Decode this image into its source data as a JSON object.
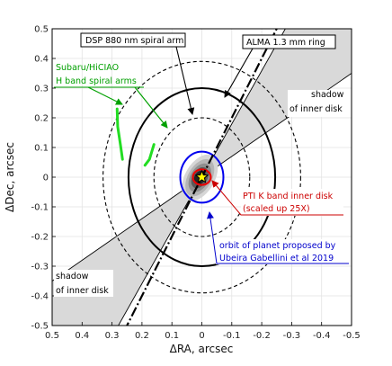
{
  "chart_data": {
    "type": "scatter",
    "xlabel": "ΔRA, arcsec",
    "ylabel": "ΔDec, arcsec",
    "xlim": [
      0.5,
      -0.5
    ],
    "ylim": [
      -0.5,
      0.5
    ],
    "x_ticks": [
      0.5,
      0.4,
      0.3,
      0.2,
      0.1,
      0,
      -0.1,
      -0.2,
      -0.3,
      -0.4,
      -0.5
    ],
    "x_tick_labels": [
      "0.5",
      "0.4",
      "0.3",
      "0.2",
      "0.1",
      "0",
      "-0.1",
      "-0.2",
      "-0.3",
      "-0.4",
      "-0.5"
    ],
    "y_ticks": [
      0.5,
      0.4,
      0.3,
      0.2,
      0.1,
      0,
      -0.1,
      -0.2,
      -0.3,
      -0.4,
      -0.5
    ],
    "y_tick_labels": [
      "0.5",
      "0.4",
      "0.3",
      "0.2",
      "0.1",
      "0",
      "-0.1",
      "-0.2",
      "-0.3",
      "-0.4",
      "-0.5"
    ],
    "grid": true,
    "shadow_wedges": [
      {
        "label": "shadow\nof inner disk",
        "polygon": [
          [
            0,
            0
          ],
          [
            -0.29,
            0.52
          ],
          [
            -0.5,
            0.52
          ],
          [
            -0.5,
            0.35
          ]
        ]
      },
      {
        "label": "shadow\nof inner disk",
        "polygon": [
          [
            0,
            0
          ],
          [
            0.29,
            -0.52
          ],
          [
            0.5,
            -0.52
          ],
          [
            0.5,
            -0.35
          ]
        ]
      }
    ],
    "dash_dot_axis": {
      "from": [
        0.26,
        -0.52
      ],
      "to": [
        -0.26,
        0.52
      ],
      "color": "#000000"
    },
    "ellipses": [
      {
        "name": "ALMA 1.3 mm ring",
        "cx": 0,
        "cy": 0,
        "rx": 0.245,
        "ry": 0.3,
        "style": "solid",
        "color": "#000000"
      },
      {
        "name": "outer dashed ellipse",
        "cx": 0,
        "cy": 0,
        "rx": 0.33,
        "ry": 0.39,
        "style": "dashed",
        "color": "#000000"
      },
      {
        "name": "inner dashed ellipse",
        "cx": 0,
        "cy": 0,
        "rx": 0.16,
        "ry": 0.2,
        "style": "dashed",
        "color": "#000000"
      },
      {
        "name": "orbit of planet proposed by Ubeira Gabellini et al 2019",
        "cx": 0,
        "cy": 0,
        "rx": 0.072,
        "ry": 0.086,
        "style": "solid",
        "color": "#0000ee"
      },
      {
        "name": "PTI K band inner disk",
        "cx": 0,
        "cy": 0,
        "rx": 0.03,
        "ry": 0.026,
        "style": "solid",
        "color": "#ee0000"
      }
    ],
    "spiral_arms_green": [
      [
        [
          0.283,
          0.23
        ],
        [
          0.281,
          0.17
        ],
        [
          0.272,
          0.11
        ],
        [
          0.265,
          0.06
        ]
      ],
      [
        [
          0.16,
          0.11
        ],
        [
          0.175,
          0.06
        ],
        [
          0.19,
          0.04
        ]
      ]
    ],
    "star": {
      "x": 0,
      "y": 0,
      "color": "#ffff00"
    },
    "annotations": [
      {
        "text": "DSP 880 nm spiral arm",
        "color": "#000000",
        "box": true,
        "arrow_to": [
          0.035,
          0.08
        ]
      },
      {
        "text": "ALMA 1.3 mm ring",
        "color": "#000000",
        "box": true,
        "arrow_to": [
          -0.075,
          0.28
        ]
      },
      {
        "text": "Subaru/HiCIAO\nH band spiral arms",
        "color": "#00a000",
        "box": false,
        "arrow_to": [
          0.26,
          0.23
        ]
      },
      {
        "text": "PTI K band inner disk\n(scaled up 25X)",
        "color": "#cc0000",
        "box": false,
        "arrow_to": [
          -0.03,
          -0.03
        ]
      },
      {
        "text": "orbit of planet proposed by\nUbeira Gabellini et al 2019",
        "color": "#0000cc",
        "box": false,
        "arrow_to": [
          -0.03,
          -0.1
        ]
      }
    ],
    "colors": {
      "shadow": "#d9d9d9",
      "green": "#22dd22",
      "red": "#ee0000",
      "blue": "#0000ee"
    }
  }
}
